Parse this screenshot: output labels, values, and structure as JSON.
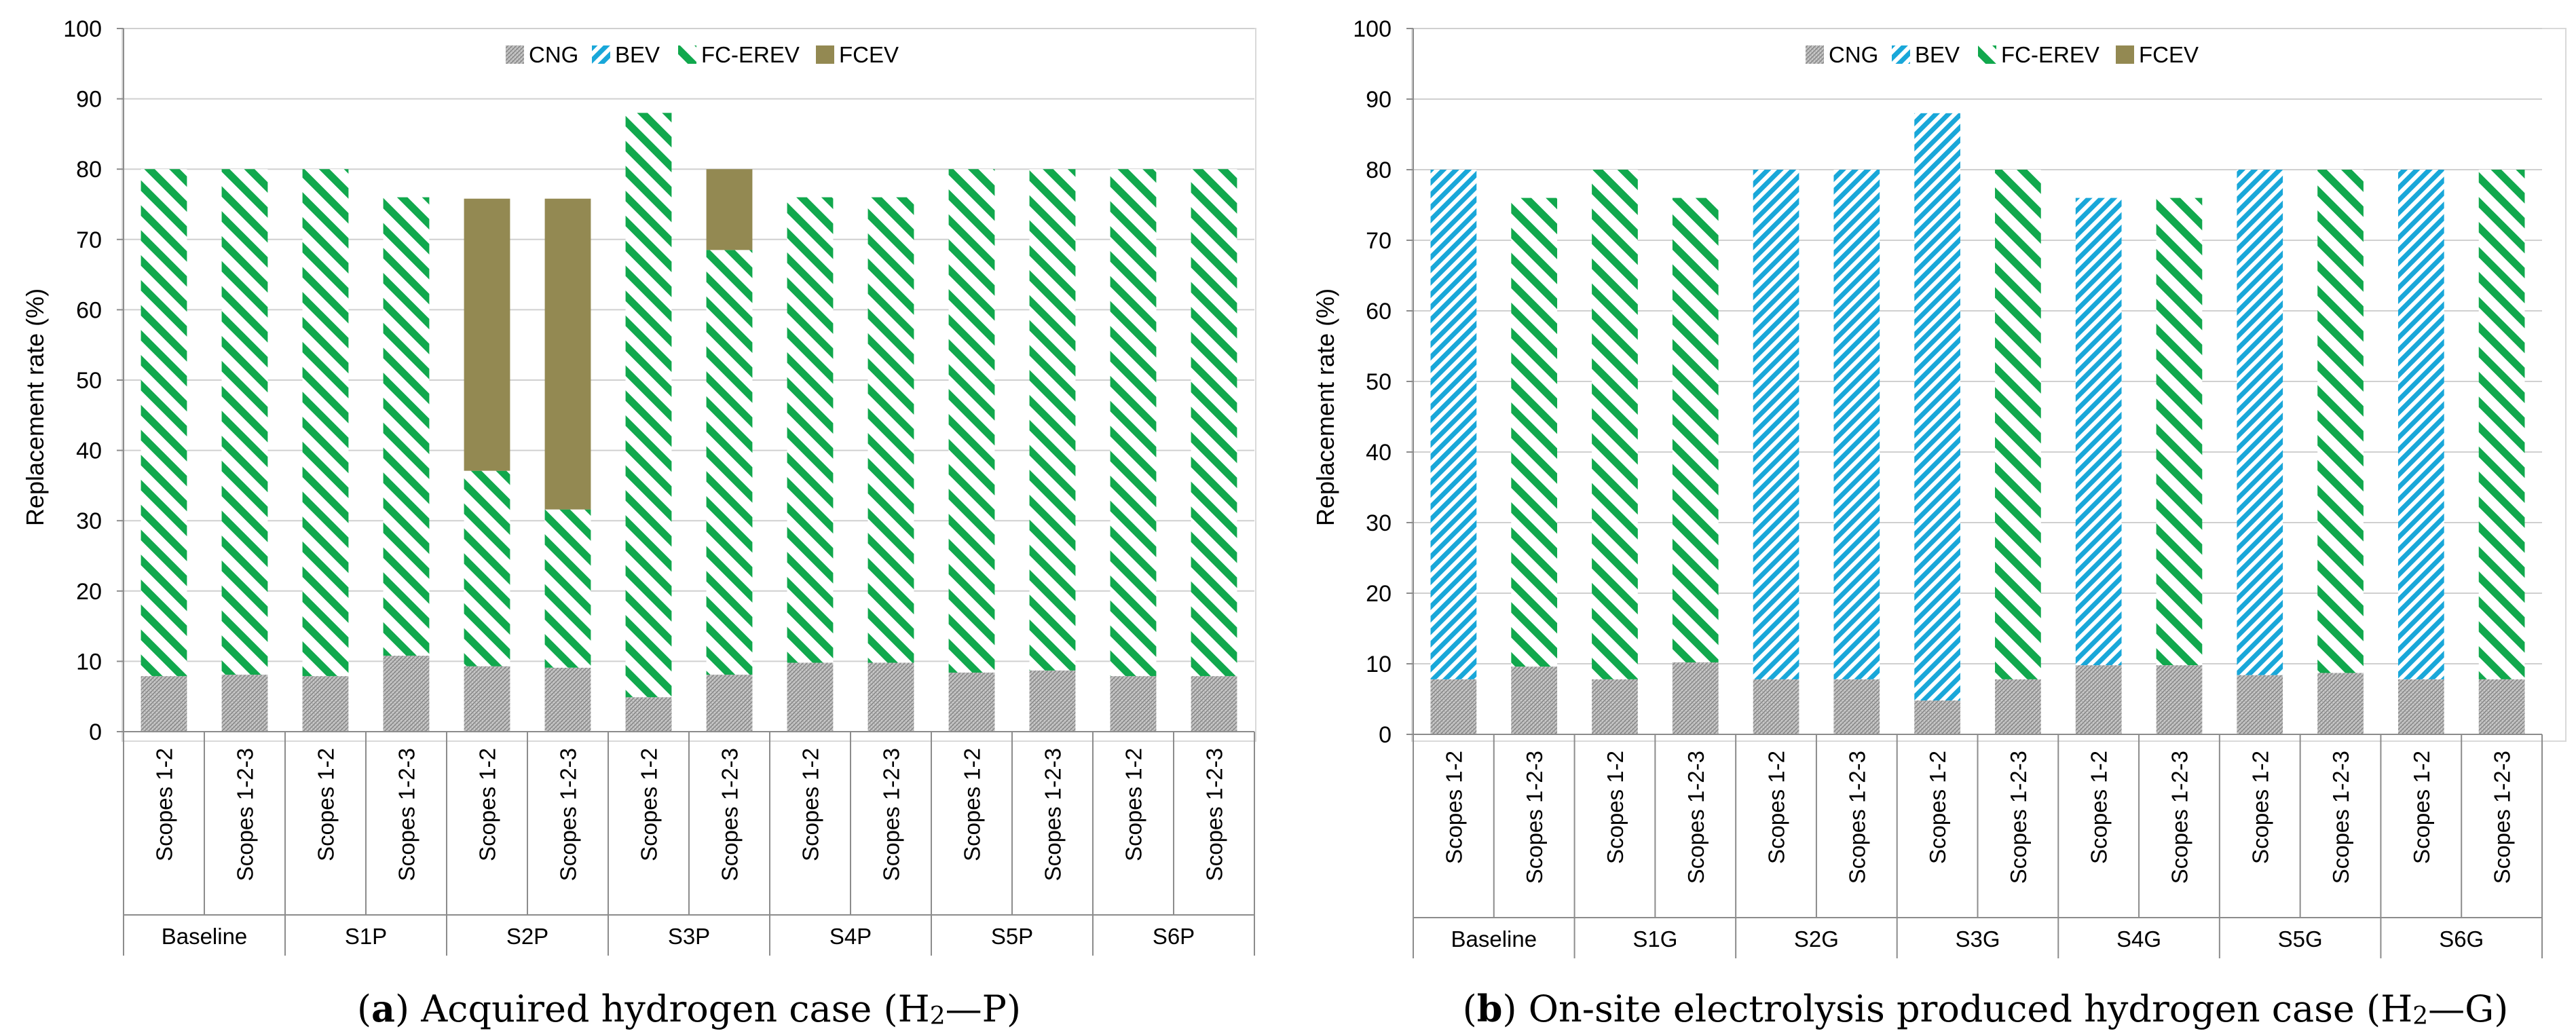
{
  "colors": {
    "CNG": "#a6a6a6",
    "BEV": "#19a7d9",
    "FC-EREV": "#11a84d",
    "FCEV": "#938952",
    "grid": "#d0d0d0",
    "axis": "#8c8c8c"
  },
  "chart_data": [
    {
      "type": "bar",
      "stacked": true,
      "caption_letter": "a",
      "caption_text": " Acquired hydrogen case (H",
      "caption_sub": "2",
      "caption_tail": "—P)",
      "ylabel": "Replacement rate (%)",
      "ylim": [
        0,
        100
      ],
      "yticks": [
        "0",
        "10",
        "20",
        "30",
        "40",
        "50",
        "60",
        "70",
        "80",
        "90",
        "100"
      ],
      "legend": [
        "CNG",
        "BEV",
        "FC-EREV",
        "FCEV"
      ],
      "legend_position": "top-center",
      "grid": true,
      "categories": [
        "Scopes 1-2",
        "Scopes 1-2-3",
        "Scopes 1-2",
        "Scopes 1-2-3",
        "Scopes 1-2",
        "Scopes 1-2-3",
        "Scopes 1-2",
        "Scopes 1-2-3",
        "Scopes 1-2",
        "Scopes 1-2-3",
        "Scopes 1-2",
        "Scopes 1-2-3",
        "Scopes 1-2",
        "Scopes 1-2-3"
      ],
      "groups": [
        "Baseline",
        "S1P",
        "S2P",
        "S3P",
        "S4P",
        "S5P",
        "S6P"
      ],
      "series": [
        {
          "name": "CNG",
          "values": [
            7.9,
            8.1,
            7.9,
            10.8,
            9.3,
            9.1,
            4.9,
            8.1,
            9.8,
            9.8,
            8.4,
            8.7,
            7.9,
            7.9
          ]
        },
        {
          "name": "BEV",
          "values": [
            0,
            0,
            0,
            0,
            0,
            0,
            0,
            0,
            0,
            0,
            0,
            0,
            0,
            0
          ]
        },
        {
          "name": "FC-EREV",
          "values": [
            72.1,
            71.9,
            72.1,
            65.2,
            27.8,
            22.5,
            83.1,
            60.4,
            66.2,
            66.2,
            71.6,
            71.3,
            72.1,
            72.1
          ]
        },
        {
          "name": "FCEV",
          "values": [
            0,
            0,
            0,
            0,
            38.7,
            44.2,
            0,
            11.5,
            0,
            0,
            0,
            0,
            0,
            0
          ]
        }
      ]
    },
    {
      "type": "bar",
      "stacked": true,
      "caption_letter": "b",
      "caption_text": " On-site electrolysis produced hydrogen case (H",
      "caption_sub": "2",
      "caption_tail": "—G)",
      "ylabel": "Replacement rate (%)",
      "ylim": [
        0,
        100
      ],
      "yticks": [
        "0",
        "10",
        "20",
        "30",
        "40",
        "50",
        "60",
        "70",
        "80",
        "90",
        "100"
      ],
      "legend": [
        "CNG",
        "BEV",
        "FC-EREV",
        "FCEV"
      ],
      "legend_position": "top-center",
      "grid": true,
      "categories": [
        "Scopes 1-2",
        "Scopes 1-2-3",
        "Scopes 1-2",
        "Scopes 1-2-3",
        "Scopes 1-2",
        "Scopes 1-2-3",
        "Scopes 1-2",
        "Scopes 1-2-3",
        "Scopes 1-2",
        "Scopes 1-2-3",
        "Scopes 1-2",
        "Scopes 1-2-3",
        "Scopes 1-2",
        "Scopes 1-2-3"
      ],
      "groups": [
        "Baseline",
        "S1G",
        "S2G",
        "S3G",
        "S4G",
        "S5G",
        "S6G"
      ],
      "series": [
        {
          "name": "CNG",
          "values": [
            7.8,
            9.6,
            7.8,
            10.2,
            7.8,
            7.8,
            4.8,
            7.8,
            9.8,
            9.8,
            8.4,
            8.7,
            7.8,
            7.8
          ]
        },
        {
          "name": "BEV",
          "values": [
            72.2,
            0,
            0,
            0,
            72.2,
            72.2,
            83.2,
            0,
            66.2,
            0,
            71.6,
            0,
            72.2,
            0
          ]
        },
        {
          "name": "FC-EREV",
          "values": [
            0,
            66.4,
            72.2,
            65.8,
            0,
            0,
            0,
            72.2,
            0,
            66.2,
            0,
            71.3,
            0,
            72.2
          ]
        },
        {
          "name": "FCEV",
          "values": [
            0,
            0,
            0,
            0,
            0,
            0,
            0,
            0,
            0,
            0,
            0,
            0,
            0,
            0
          ]
        }
      ]
    }
  ]
}
